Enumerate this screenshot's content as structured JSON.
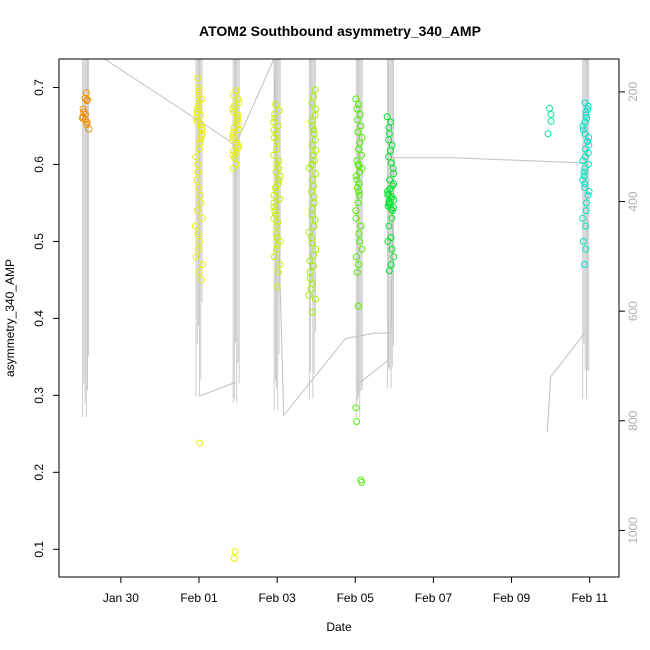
{
  "chart_data": {
    "type": "scatter",
    "title": "ATOM2 Southbound asymmetry_340_AMP",
    "xlabel": "Date",
    "ylabel": "asymmetry_340_AMP",
    "x_unit": "date (2021)",
    "xlim": [
      "2021-01-28T10:00",
      "2021-02-11T18:00"
    ],
    "ylim": [
      0.064,
      0.737
    ],
    "x_ticks": [
      {
        "date": "2021-01-30",
        "label": "Jan 30"
      },
      {
        "date": "2021-02-01",
        "label": "Feb 01"
      },
      {
        "date": "2021-02-03",
        "label": "Feb 03"
      },
      {
        "date": "2021-02-05",
        "label": "Feb 05"
      },
      {
        "date": "2021-02-07",
        "label": "Feb 07"
      },
      {
        "date": "2021-02-09",
        "label": "Feb 09"
      },
      {
        "date": "2021-02-11",
        "label": "Feb 11"
      }
    ],
    "y_ticks": [
      0.1,
      0.2,
      0.3,
      0.4,
      0.5,
      0.6,
      0.7
    ],
    "y2_ticks": [
      200,
      400,
      600,
      800,
      1000
    ],
    "y2lim": [
      140,
      1085
    ],
    "grid": false,
    "marker": "open circle",
    "point_clusters": [
      {
        "t": "2021-01-29T02:24",
        "color": "#f08c00",
        "values": [
          0.693,
          0.686,
          0.684,
          0.683,
          0.672,
          0.668,
          0.665,
          0.662,
          0.66,
          0.658,
          0.655,
          0.652,
          0.646
        ]
      },
      {
        "t": "2021-02-01T00:00",
        "color": "#f0f000",
        "values": [
          0.712,
          0.7,
          0.695,
          0.69,
          0.685,
          0.68,
          0.676,
          0.672,
          0.668,
          0.664,
          0.66,
          0.656,
          0.652,
          0.648,
          0.645,
          0.64,
          0.637,
          0.633,
          0.628,
          0.62,
          0.61,
          0.6,
          0.59,
          0.58,
          0.57,
          0.56,
          0.55,
          0.54,
          0.53,
          0.52,
          0.51,
          0.5,
          0.49,
          0.48,
          0.47,
          0.46,
          0.45,
          0.238
        ]
      },
      {
        "t": "2021-02-01T22:48",
        "color": "#e6f000",
        "values": [
          0.696,
          0.69,
          0.685,
          0.68,
          0.676,
          0.672,
          0.668,
          0.664,
          0.66,
          0.656,
          0.652,
          0.648,
          0.645,
          0.642,
          0.638,
          0.635,
          0.632,
          0.628,
          0.625,
          0.622,
          0.618,
          0.615,
          0.612,
          0.608,
          0.6,
          0.595,
          0.097,
          0.088
        ]
      },
      {
        "t": "2021-02-03T00:00",
        "color": "#c8f000",
        "values": [
          0.678,
          0.67,
          0.665,
          0.66,
          0.655,
          0.65,
          0.645,
          0.64,
          0.635,
          0.63,
          0.62,
          0.612,
          0.605,
          0.6,
          0.595,
          0.59,
          0.585,
          0.58,
          0.575,
          0.57,
          0.565,
          0.56,
          0.555,
          0.55,
          0.545,
          0.54,
          0.535,
          0.53,
          0.525,
          0.52,
          0.51,
          0.505,
          0.5,
          0.495,
          0.49,
          0.48,
          0.47,
          0.46,
          0.441
        ]
      },
      {
        "t": "2021-02-03T21:36",
        "color": "#a0f000",
        "values": [
          0.697,
          0.688,
          0.68,
          0.672,
          0.664,
          0.656,
          0.65,
          0.645,
          0.64,
          0.632,
          0.625,
          0.618,
          0.612,
          0.605,
          0.6,
          0.595,
          0.588,
          0.58,
          0.572,
          0.565,
          0.558,
          0.55,
          0.542,
          0.535,
          0.528,
          0.52,
          0.512,
          0.505,
          0.498,
          0.49,
          0.482,
          0.475,
          0.468,
          0.46,
          0.452,
          0.445,
          0.438,
          0.43,
          0.425,
          0.408
        ]
      },
      {
        "t": "2021-02-05T02:24",
        "color": "#50f000",
        "values": [
          0.685,
          0.678,
          0.672,
          0.665,
          0.658,
          0.65,
          0.642,
          0.635,
          0.628,
          0.62,
          0.612,
          0.605,
          0.6,
          0.598,
          0.595,
          0.59,
          0.585,
          0.58,
          0.575,
          0.57,
          0.565,
          0.56,
          0.55,
          0.54,
          0.53,
          0.52,
          0.51,
          0.5,
          0.49,
          0.48,
          0.47,
          0.46,
          0.416,
          0.284,
          0.266,
          0.19,
          0.187
        ]
      },
      {
        "t": "2021-02-05T21:36",
        "color": "#00e628",
        "values": [
          0.662,
          0.655,
          0.648,
          0.64,
          0.632,
          0.625,
          0.618,
          0.61,
          0.602,
          0.595,
          0.588,
          0.58,
          0.575,
          0.572,
          0.568,
          0.565,
          0.562,
          0.56,
          0.558,
          0.556,
          0.554,
          0.552,
          0.55,
          0.548,
          0.546,
          0.544,
          0.542,
          0.54,
          0.53,
          0.52,
          0.505,
          0.5,
          0.49,
          0.48,
          0.47,
          0.462
        ]
      },
      {
        "t": "2021-02-10T00:00",
        "color": "#00e6a0",
        "values": [
          0.673,
          0.665,
          0.656,
          0.64
        ]
      },
      {
        "t": "2021-02-10T21:36",
        "color": "#00e6c8",
        "values": [
          0.68,
          0.676,
          0.672,
          0.668,
          0.664,
          0.66,
          0.655,
          0.65,
          0.645,
          0.64,
          0.635,
          0.63,
          0.625,
          0.62,
          0.615,
          0.61,
          0.605,
          0.6,
          0.595,
          0.59,
          0.585,
          0.58,
          0.575,
          0.57,
          0.565,
          0.56,
          0.55,
          0.54,
          0.53,
          0.52,
          0.5,
          0.49,
          0.47
        ]
      }
    ],
    "line_color": "#c0c0c0",
    "spike_groups": [
      {
        "t": "2021-01-29T02:24",
        "y2_low": 793
      },
      {
        "t": "2021-02-01T00:00",
        "y2_low": 756
      },
      {
        "t": "2021-02-01T22:48",
        "y2_low": 767
      },
      {
        "t": "2021-02-03T00:00",
        "y2_low": 780
      },
      {
        "t": "2021-02-03T21:36",
        "y2_low": 760
      },
      {
        "t": "2021-02-05T02:24",
        "y2_low": 794
      },
      {
        "t": "2021-02-05T21:36",
        "y2_low": 740
      },
      {
        "t": "2021-02-10T21:36",
        "y2_low": 760
      }
    ],
    "depth_path": [
      {
        "t": "2021-01-29T14:00",
        "y2": 140
      },
      {
        "t": "2021-02-01T19:00",
        "y2": 290
      },
      {
        "t": "2021-02-01T22:00",
        "y2": 300
      },
      {
        "t": "2021-02-02T22:00",
        "y2": 140
      },
      {
        "t": "2021-02-03T04:00",
        "y2": 790
      },
      {
        "t": "2021-02-04T18:00",
        "y2": 650
      },
      {
        "t": "2021-02-05T12:00",
        "y2": 640
      },
      {
        "t": "2021-02-05T22:00",
        "y2": 640
      },
      {
        "t": "2021-02-06T00:00",
        "y2": 320
      },
      {
        "t": "2021-02-07T12:00",
        "y2": 320
      },
      {
        "t": "2021-02-10T23:00",
        "y2": 330
      }
    ],
    "depth_segments": [
      [
        {
          "t": "2021-02-01T00:00",
          "y2": 755
        },
        {
          "t": "2021-02-01T22:30",
          "y2": 730
        }
      ],
      [
        {
          "t": "2021-02-05T01:00",
          "y2": 735
        },
        {
          "t": "2021-02-05T20:00",
          "y2": 690
        }
      ],
      [
        {
          "t": "2021-02-09T22:00",
          "y2": 820
        },
        {
          "t": "2021-02-10T00:00",
          "y2": 720
        },
        {
          "t": "2021-02-10T21:00",
          "y2": 640
        }
      ]
    ]
  }
}
